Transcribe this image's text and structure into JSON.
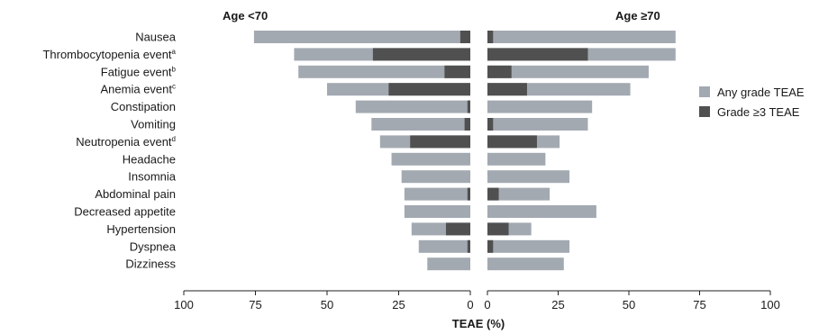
{
  "chart_data": {
    "type": "bar",
    "orientation": "horizontal",
    "layout": "back-to-back",
    "xlabel": "TEAE (%)",
    "panels": [
      {
        "title": "Age <70",
        "direction": "left",
        "xlim": [
          100,
          0
        ],
        "ticks": [
          "100",
          "75",
          "50",
          "25",
          "0"
        ]
      },
      {
        "title": "Age ≥70",
        "direction": "right",
        "xlim": [
          0,
          100
        ],
        "ticks": [
          "0",
          "25",
          "50",
          "75",
          "100"
        ]
      }
    ],
    "categories": [
      {
        "label": "Nausea",
        "sup": ""
      },
      {
        "label": "Thrombocytopenia event",
        "sup": "a"
      },
      {
        "label": "Fatigue event",
        "sup": "b"
      },
      {
        "label": "Anemia event",
        "sup": "c"
      },
      {
        "label": "Constipation",
        "sup": ""
      },
      {
        "label": "Vomiting",
        "sup": ""
      },
      {
        "label": "Neutropenia event",
        "sup": "d"
      },
      {
        "label": "Headache",
        "sup": ""
      },
      {
        "label": "Insomnia",
        "sup": ""
      },
      {
        "label": "Abdominal pain",
        "sup": ""
      },
      {
        "label": "Decreased appetite",
        "sup": ""
      },
      {
        "label": "Hypertension",
        "sup": ""
      },
      {
        "label": "Dyspnea",
        "sup": ""
      },
      {
        "label": "Dizziness",
        "sup": ""
      }
    ],
    "series": [
      {
        "name": "Any grade TEAE",
        "color": "#a3a9b1",
        "under70": [
          75.5,
          61.5,
          60.0,
          50.0,
          40.0,
          34.5,
          31.5,
          27.5,
          24.0,
          23.0,
          23.0,
          20.5,
          18.0,
          15.0
        ],
        "over70": [
          66.5,
          66.5,
          57.0,
          50.5,
          37.0,
          35.5,
          25.5,
          20.5,
          29.0,
          22.0,
          38.5,
          15.5,
          29.0,
          27.0
        ]
      },
      {
        "name": "Grade ≥3 TEAE",
        "color": "#505050",
        "under70": [
          3.5,
          34.0,
          9.0,
          28.5,
          1.0,
          2.0,
          21.0,
          0,
          0,
          1.0,
          0,
          8.5,
          1.0,
          0
        ],
        "over70": [
          2.0,
          35.5,
          8.5,
          14.0,
          0,
          2.0,
          17.5,
          0,
          0,
          4.0,
          0,
          7.5,
          2.0,
          0
        ]
      }
    ],
    "legend": {
      "position": "right",
      "items": [
        {
          "label": "Any grade TEAE",
          "color": "#a3a9b1"
        },
        {
          "label": "Grade ≥3 TEAE",
          "color": "#505050"
        }
      ]
    },
    "grid": false
  }
}
